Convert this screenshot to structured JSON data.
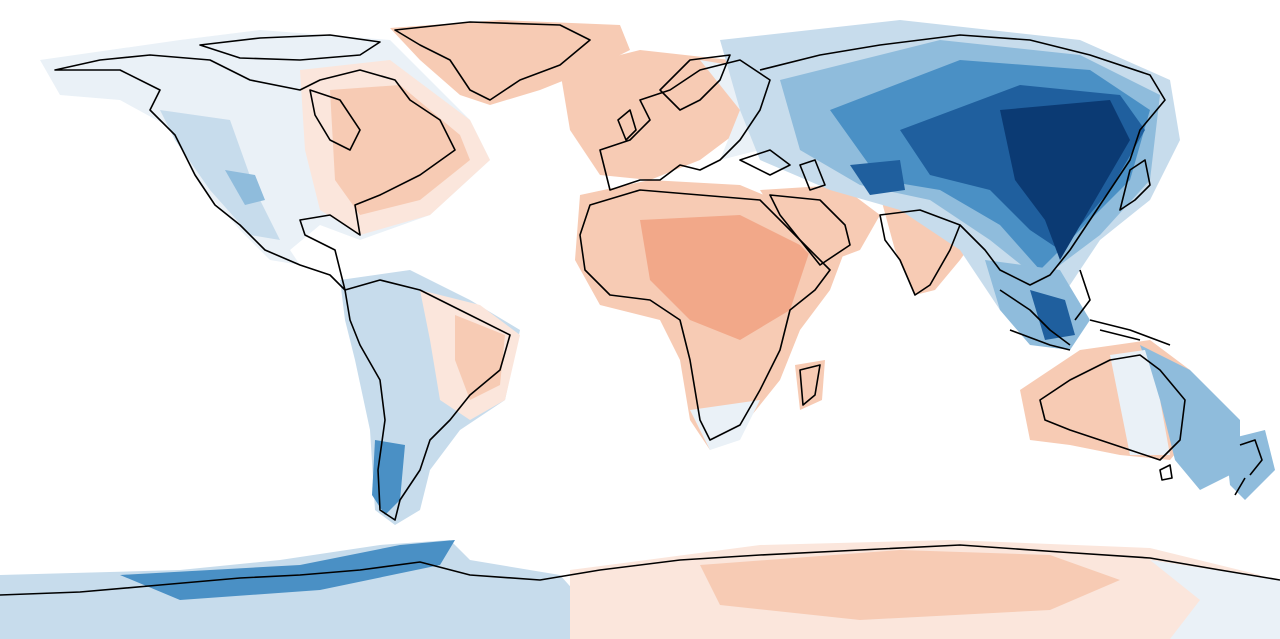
{
  "map": {
    "projection": "plate-carree",
    "colors": {
      "background": "#ffffff",
      "coastline": "#000000",
      "warm_1": "#fbe6dc",
      "warm_2": "#f7cbb4",
      "warm_3": "#f2a889",
      "cool_1": "#eaf1f7",
      "cool_2": "#c7dcec",
      "cool_3": "#8fbcdc",
      "cool_4": "#4a90c5",
      "cool_5": "#1f5f9e",
      "cool_6": "#0b3a73"
    }
  }
}
